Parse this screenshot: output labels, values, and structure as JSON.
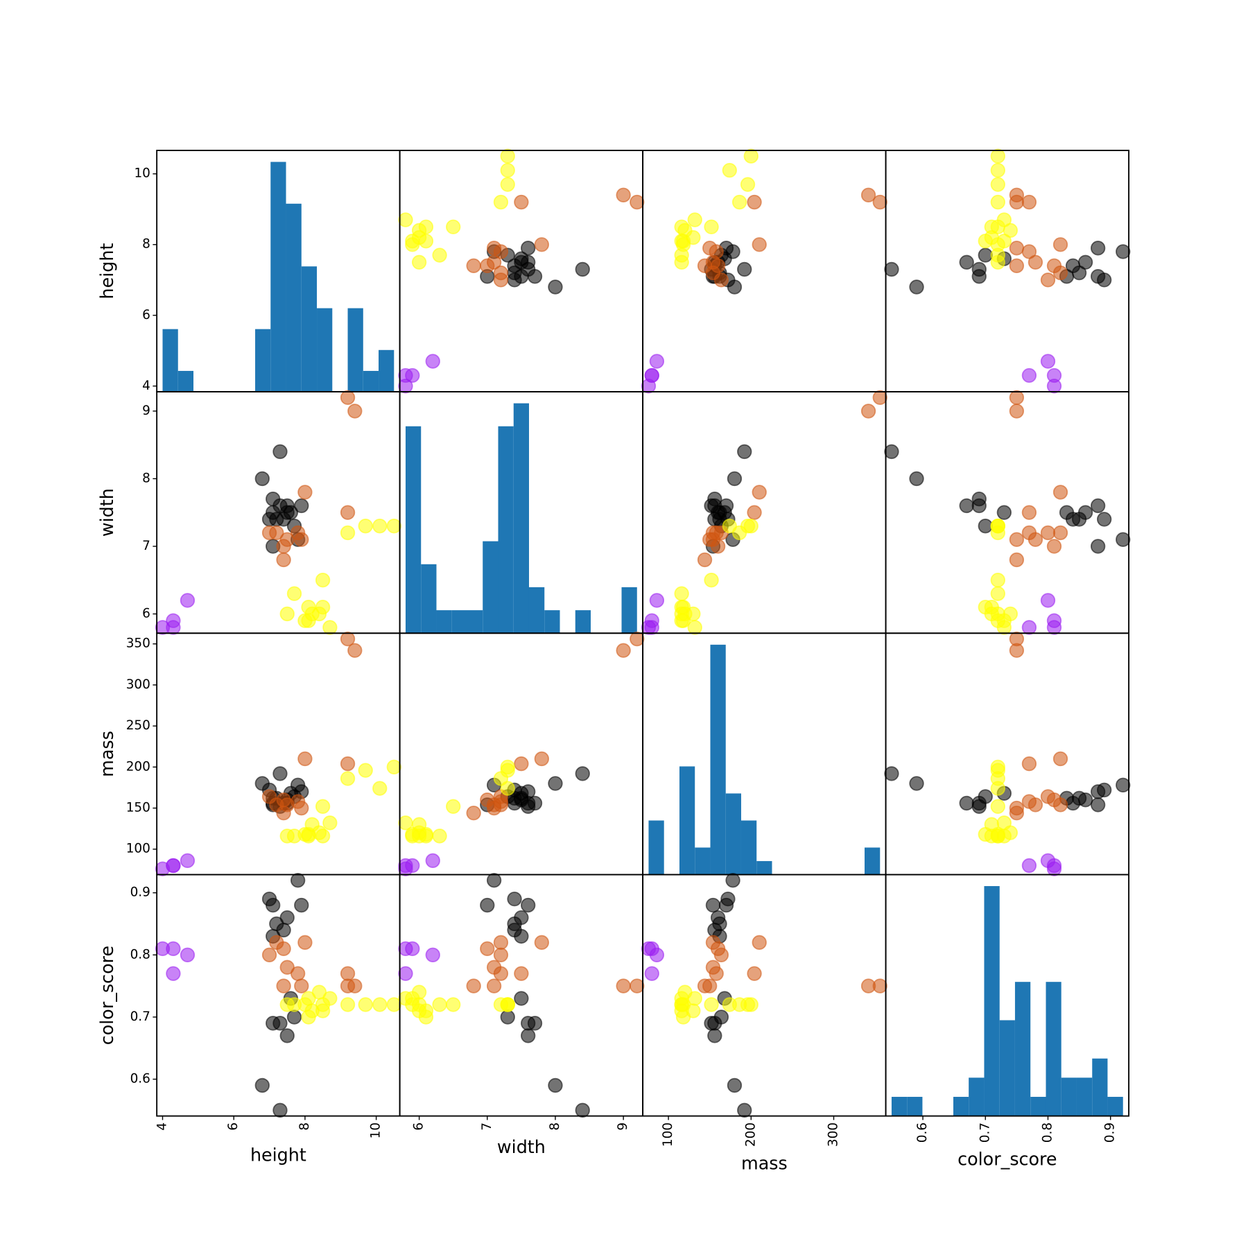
{
  "chart_data": {
    "type": "scatter_matrix",
    "alpha": 0.55,
    "hist_color": "#1f77b4",
    "variables": [
      {
        "name": "height",
        "lim": [
          3.8375,
          10.6625
        ],
        "xticks": [
          4,
          6,
          8,
          10
        ],
        "yticks": [
          4,
          6,
          8,
          10
        ],
        "hist": {
          "bins": [
            4,
            4.4333,
            4.8667,
            5.3,
            5.7333,
            6.1667,
            6.6,
            7.0333,
            7.4667,
            7.9,
            8.3333,
            8.7667,
            9.2,
            9.6333,
            10.0667,
            10.5
          ],
          "counts": [
            3,
            1,
            0,
            0,
            0,
            0,
            3,
            11,
            9,
            6,
            4,
            0,
            4,
            1,
            2
          ]
        }
      },
      {
        "name": "width",
        "lim": [
          5.715,
          9.285
        ],
        "xticks": [
          6,
          7,
          8,
          9
        ],
        "yticks": [
          6,
          7,
          8,
          9
        ],
        "hist": {
          "bins": [
            5.8,
            6.0267,
            6.2533,
            6.48,
            6.7067,
            6.9333,
            7.16,
            7.3867,
            7.6133,
            7.84,
            8.0667,
            8.2933,
            8.52,
            8.7467,
            8.9733,
            9.2
          ],
          "counts": [
            9,
            3,
            1,
            1,
            1,
            4,
            9,
            10,
            2,
            1,
            0,
            1,
            0,
            0,
            2
          ]
        }
      },
      {
        "name": "mass",
        "lim": [
          69,
          363
        ],
        "xticks": [
          100,
          200,
          300
        ],
        "yticks": [
          100,
          150,
          200,
          250,
          300,
          350
        ],
        "hist": {
          "bins": [
            76,
            94.6667,
            113.3333,
            132,
            150.6667,
            169.3333,
            188,
            206.6667,
            225.3333,
            244,
            262.6667,
            281.3333,
            300,
            318.6667,
            337.3333,
            356
          ],
          "counts": [
            4,
            0,
            8,
            2,
            17,
            6,
            4,
            1,
            0,
            0,
            0,
            0,
            0,
            0,
            2
          ]
        }
      },
      {
        "name": "color_score",
        "lim": [
          0.54075,
          0.92925
        ],
        "xticks": [
          0.6,
          0.7,
          0.8,
          0.9
        ],
        "yticks": [
          0.6,
          0.7,
          0.8,
          0.9
        ],
        "hist": {
          "bins": [
            0.55,
            0.5747,
            0.5993,
            0.624,
            0.6487,
            0.6733,
            0.698,
            0.7227,
            0.7473,
            0.772,
            0.7967,
            0.8213,
            0.846,
            0.8707,
            0.8953,
            0.92
          ],
          "counts": [
            1,
            1,
            0,
            0,
            1,
            2,
            12,
            5,
            7,
            1,
            7,
            2,
            2,
            3,
            1
          ]
        }
      }
    ],
    "groups": [
      {
        "color": "#000000",
        "values": [
          [
            7.3,
            6.8,
            7.8,
            7.0,
            7.1,
            7.7,
            7.3,
            7.1,
            7.5,
            7.6,
            7.1,
            7.2,
            7.5,
            7.4,
            7.9
          ],
          [
            8.4,
            8.0,
            7.1,
            7.4,
            7.0,
            7.3,
            7.6,
            7.7,
            7.6,
            7.5,
            7.5,
            7.4,
            7.5,
            7.4,
            7.6
          ],
          [
            192,
            180,
            178,
            172,
            154,
            164,
            152,
            156,
            156,
            168,
            162,
            162,
            160,
            156,
            170
          ],
          [
            0.55,
            0.59,
            0.92,
            0.89,
            0.88,
            0.7,
            0.69,
            0.69,
            0.67,
            0.73,
            0.83,
            0.85,
            0.86,
            0.84,
            0.88
          ]
        ]
      },
      {
        "color": "#9b1ef0",
        "values": [
          [
            4.7,
            4.3,
            4.3,
            4.0
          ],
          [
            6.2,
            5.8,
            5.9,
            5.8
          ],
          [
            86,
            80,
            80,
            76
          ],
          [
            0.8,
            0.77,
            0.81,
            0.81
          ]
        ]
      },
      {
        "color": "#cf5510",
        "values": [
          [
            9.4,
            9.2,
            9.2,
            7.4,
            8.0,
            7.0,
            7.8,
            7.4,
            7.5,
            7.2,
            7.9
          ],
          [
            9.0,
            9.2,
            7.5,
            7.0,
            7.8,
            7.2,
            7.2,
            6.8,
            7.1,
            7.2,
            7.1
          ],
          [
            342,
            356,
            204,
            160,
            210,
            164,
            158,
            144,
            154,
            154,
            150
          ],
          [
            0.75,
            0.75,
            0.77,
            0.81,
            0.82,
            0.8,
            0.77,
            0.75,
            0.78,
            0.82,
            0.75
          ]
        ]
      },
      {
        "color": "#ffff00",
        "values": [
          [
            10.5,
            10.1,
            9.7,
            9.2,
            8.7,
            8.2,
            7.5,
            8.0,
            8.4,
            8.5,
            7.7,
            8.1,
            8.5,
            8.1
          ],
          [
            7.3,
            7.3,
            7.3,
            7.2,
            5.8,
            6.0,
            6.0,
            5.9,
            6.0,
            6.1,
            6.3,
            5.9,
            6.5,
            6.1
          ],
          [
            200,
            174,
            196,
            186,
            132,
            130,
            116,
            118,
            120,
            116,
            116,
            116,
            152,
            118
          ],
          [
            0.72,
            0.72,
            0.72,
            0.72,
            0.73,
            0.71,
            0.72,
            0.72,
            0.74,
            0.71,
            0.72,
            0.73,
            0.72,
            0.7
          ]
        ]
      }
    ]
  }
}
